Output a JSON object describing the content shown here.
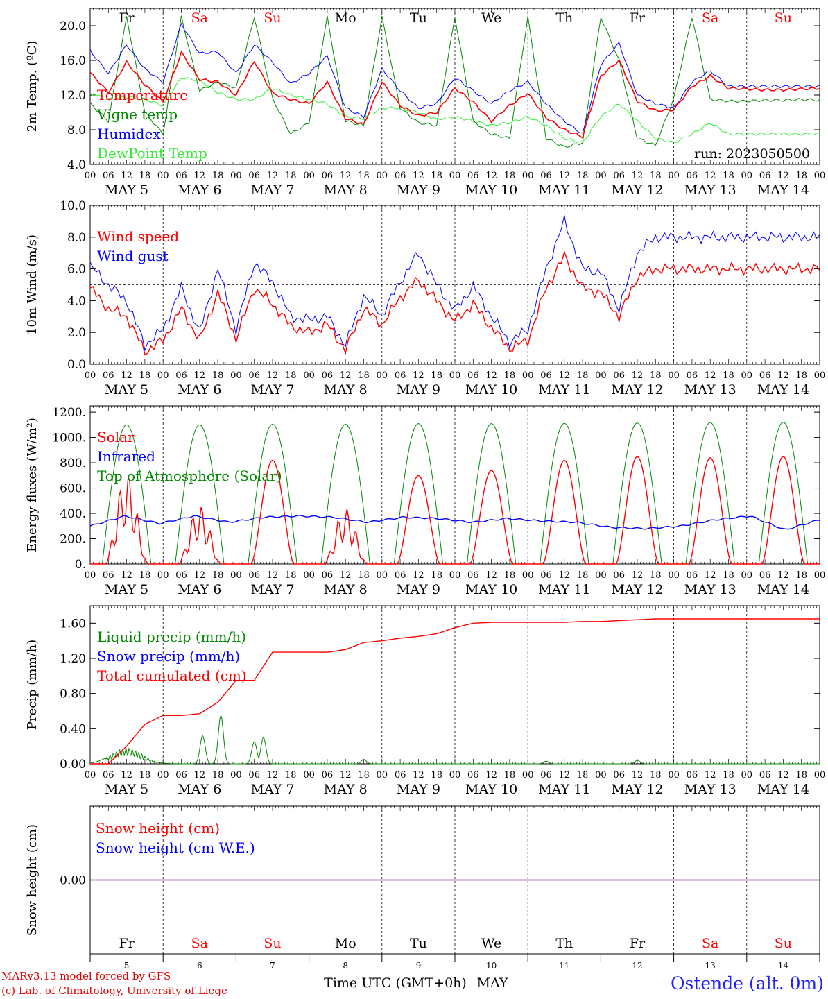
{
  "footer": {
    "credit_model": "MARv3.13 model forced by GFS",
    "credit_lab": "(c) Lab. of Climatology, University of Liege",
    "station": "Ostende (alt. 0m)"
  },
  "axes": {
    "hour_labels": [
      "00",
      "06",
      "12",
      "18"
    ],
    "dates": [
      "MAY 5",
      "MAY 6",
      "MAY 7",
      "MAY 8",
      "MAY 9",
      "MAY 10",
      "MAY 11",
      "MAY 12",
      "MAY 13",
      "MAY 14"
    ],
    "weekdays": [
      "Fr",
      "Sa",
      "Su",
      "Mo",
      "Tu",
      "We",
      "Th",
      "Fr",
      "Sa",
      "Su"
    ],
    "weekend_flags": [
      false,
      true,
      true,
      false,
      false,
      false,
      false,
      false,
      true,
      true
    ],
    "day_numbers": [
      "5",
      "6",
      "7",
      "8",
      "9",
      "10",
      "11",
      "12",
      "13",
      "14"
    ],
    "bottom_xlabel": "Time UTC (GMT+0h)",
    "bottom_month": "MAY"
  },
  "colors": {
    "red": "#ff0000",
    "green": "#008800",
    "blue": "#0000ff",
    "lightgreen": "#33ee33",
    "purple": "#800080"
  },
  "chart_data": [
    {
      "type": "line",
      "ylabel": "2m Temp. (ºC)",
      "ylim": [
        4,
        22
      ],
      "yticks": [
        4,
        8,
        12,
        16,
        20
      ],
      "ytick_labels": [
        "4.0",
        "8.0",
        "12.0",
        "16.0",
        "20.0"
      ],
      "annotation": "run: 2023050500",
      "x_hours": [
        0,
        6,
        12,
        18,
        24,
        30,
        36,
        42,
        48,
        54,
        60,
        66,
        72,
        78,
        84,
        90,
        96,
        102,
        108,
        114,
        120,
        126,
        132,
        138,
        144,
        150,
        156,
        162,
        168,
        174,
        180,
        186,
        192,
        198,
        204,
        210,
        216,
        222,
        228,
        234,
        240
      ],
      "series": [
        {
          "name": "Temperature",
          "color": "red",
          "values": [
            14.6,
            12.3,
            15.8,
            13.2,
            11.2,
            16.9,
            13.8,
            13.5,
            12.0,
            15.9,
            12.2,
            11.5,
            11.0,
            13.5,
            9.3,
            8.6,
            13.5,
            10.8,
            9.6,
            10.0,
            12.8,
            11.2,
            9.0,
            10.8,
            12.2,
            9.4,
            8.0,
            7.2,
            14.2,
            16.0,
            11.3,
            10.2,
            10.3,
            13.0,
            14.2,
            12.8,
            12.7,
            12.6,
            12.6,
            12.7,
            12.8
          ]
        },
        {
          "name": "Vigne temp",
          "color": "green",
          "values": [
            11.0,
            9.0,
            21.0,
            10.0,
            7.5,
            21.0,
            12.5,
            13.5,
            12.8,
            21.0,
            11.6,
            7.5,
            8.8,
            21.0,
            9.0,
            8.5,
            21.0,
            10.5,
            8.8,
            8.5,
            21.0,
            9.0,
            7.5,
            7.0,
            21.0,
            7.0,
            6.0,
            6.5,
            21.0,
            16.0,
            7.0,
            6.2,
            11.6,
            21.0,
            11.5,
            11.3,
            11.3,
            11.4,
            11.4,
            11.5,
            11.4
          ]
        },
        {
          "name": "Humidex",
          "color": "blue",
          "values": [
            17.1,
            14.5,
            17.8,
            15.0,
            13.5,
            20.2,
            16.8,
            17.0,
            14.5,
            17.8,
            15.8,
            13.3,
            14.5,
            16.5,
            10.5,
            9.5,
            15.0,
            12.5,
            10.5,
            11.0,
            14.0,
            12.5,
            11.0,
            12.5,
            13.5,
            11.0,
            9.0,
            7.5,
            15.5,
            18.0,
            12.0,
            11.0,
            10.5,
            13.5,
            14.8,
            13.0,
            13.0,
            13.0,
            13.0,
            13.0,
            13.0
          ]
        },
        {
          "name": "DewPoint Temp",
          "color": "lightgreen",
          "values": [
            12.2,
            11.5,
            11.8,
            11.5,
            10.8,
            14.0,
            13.7,
            12.3,
            11.5,
            11.5,
            12.8,
            12.0,
            11.5,
            11.0,
            9.5,
            9.3,
            10.5,
            10.5,
            10.0,
            9.2,
            9.5,
            9.0,
            8.5,
            8.8,
            9.5,
            8.5,
            7.0,
            6.5,
            9.5,
            11.0,
            9.0,
            7.0,
            6.5,
            7.5,
            8.8,
            7.5,
            7.5,
            7.5,
            7.5,
            7.5,
            7.5
          ]
        }
      ]
    },
    {
      "type": "line",
      "ylabel": "10m Wind (m/s)",
      "ylim": [
        0,
        10
      ],
      "yticks": [
        0,
        2,
        4,
        6,
        8,
        10
      ],
      "ytick_labels": [
        "0.0",
        "2.0",
        "4.0",
        "6.0",
        "8.0",
        "10.0"
      ],
      "reference_line": 5.0,
      "x_hours": [
        0,
        6,
        12,
        18,
        24,
        30,
        36,
        42,
        48,
        54,
        60,
        66,
        72,
        78,
        84,
        90,
        96,
        102,
        108,
        114,
        120,
        126,
        132,
        138,
        144,
        150,
        156,
        162,
        168,
        174,
        180,
        186,
        192,
        198,
        204,
        210,
        216,
        222,
        228,
        234,
        240
      ],
      "series": [
        {
          "name": "Wind speed",
          "color": "red",
          "values": [
            4.8,
            3.5,
            3.0,
            0.8,
            1.5,
            3.5,
            1.5,
            4.5,
            1.6,
            4.8,
            3.8,
            2.4,
            2.0,
            2.5,
            0.9,
            3.5,
            2.5,
            4.2,
            5.3,
            4.0,
            2.7,
            3.8,
            2.3,
            1.0,
            1.5,
            4.8,
            6.8,
            4.8,
            4.5,
            3.0,
            5.5,
            6.0,
            6.0,
            6.0,
            6.0,
            6.0,
            6.0,
            6.0,
            6.0,
            6.0,
            6.0
          ]
        },
        {
          "name": "Wind gust",
          "color": "blue",
          "values": [
            6.2,
            5.0,
            4.0,
            1.2,
            2.2,
            4.8,
            2.0,
            6.0,
            2.2,
            6.4,
            5.2,
            3.0,
            2.8,
            3.0,
            1.2,
            4.3,
            3.1,
            5.2,
            7.0,
            5.0,
            3.4,
            4.9,
            3.0,
            1.4,
            2.2,
            6.0,
            9.0,
            6.0,
            5.8,
            3.5,
            7.0,
            8.0,
            8.0,
            8.0,
            8.0,
            8.0,
            8.0,
            8.0,
            8.0,
            8.0,
            8.0
          ]
        }
      ]
    },
    {
      "type": "line",
      "ylabel": "Energy fluxes (W/m²)",
      "ylim": [
        0,
        1250
      ],
      "yticks": [
        0,
        200,
        400,
        600,
        800,
        1000,
        1200
      ],
      "ytick_labels": [
        "0.",
        "200.",
        "400.",
        "600.",
        "800.",
        "1000.",
        "1200."
      ],
      "series": [
        {
          "name": "Solar",
          "color": "red",
          "day_peaks": [
            720,
            460,
            820,
            440,
            700,
            740,
            820,
            850,
            840,
            850
          ]
        },
        {
          "name": "Infrared",
          "color": "blue",
          "values": [
            300,
            380,
            320,
            380,
            330,
            370,
            380,
            370,
            330,
            370,
            360,
            330,
            360,
            340,
            330,
            290,
            280,
            300,
            350,
            380,
            270,
            350
          ]
        },
        {
          "name": "Top of Atmosphere (Solar)",
          "color": "green",
          "day_peaks": [
            1100,
            1100,
            1105,
            1105,
            1110,
            1110,
            1112,
            1115,
            1118,
            1120
          ]
        }
      ]
    },
    {
      "type": "line",
      "ylabel": "Precip (mm/h)",
      "ylim": [
        0,
        1.8
      ],
      "yticks": [
        0,
        0.4,
        0.8,
        1.2,
        1.6
      ],
      "ytick_labels": [
        "0.00",
        "0.40",
        "0.80",
        "1.20",
        "1.60"
      ],
      "series": [
        {
          "name": "Liquid precip (mm/h)",
          "color": "green",
          "peaks": [
            [
              12,
              0.18
            ],
            [
              37,
              0.32
            ],
            [
              43,
              0.55
            ],
            [
              54,
              0.25
            ],
            [
              57,
              0.3
            ],
            [
              90,
              0.05
            ],
            [
              150,
              0.03
            ],
            [
              180,
              0.04
            ]
          ]
        },
        {
          "name": "Snow precip (mm/h)",
          "color": "blue",
          "values": [
            0
          ]
        },
        {
          "name": "Total cumulated (cm)",
          "color": "red",
          "x_hours": [
            0,
            6,
            12,
            18,
            24,
            30,
            36,
            42,
            48,
            54,
            60,
            66,
            72,
            78,
            84,
            90,
            96,
            102,
            108,
            114,
            120,
            126,
            132,
            138,
            144,
            150,
            156,
            162,
            168,
            174,
            180,
            186,
            192,
            198,
            204,
            210,
            216,
            222,
            228,
            234,
            240
          ],
          "values": [
            0,
            0,
            0.2,
            0.45,
            0.55,
            0.55,
            0.57,
            0.7,
            0.95,
            0.95,
            1.27,
            1.27,
            1.27,
            1.27,
            1.3,
            1.38,
            1.4,
            1.43,
            1.45,
            1.48,
            1.55,
            1.6,
            1.61,
            1.61,
            1.61,
            1.61,
            1.61,
            1.62,
            1.62,
            1.63,
            1.64,
            1.65,
            1.65,
            1.65,
            1.65,
            1.65,
            1.65,
            1.65,
            1.65,
            1.65,
            1.65
          ]
        }
      ]
    },
    {
      "type": "line",
      "ylabel": "Snow height (cm)",
      "ylim": [
        -1,
        1
      ],
      "yticks": [
        0
      ],
      "ytick_labels": [
        "0.00"
      ],
      "series": [
        {
          "name": "Snow height (cm)",
          "color": "red",
          "values": [
            0,
            0
          ]
        },
        {
          "name": "Snow height (cm W.E.)",
          "color": "blue",
          "values": [
            0,
            0
          ]
        }
      ]
    }
  ]
}
